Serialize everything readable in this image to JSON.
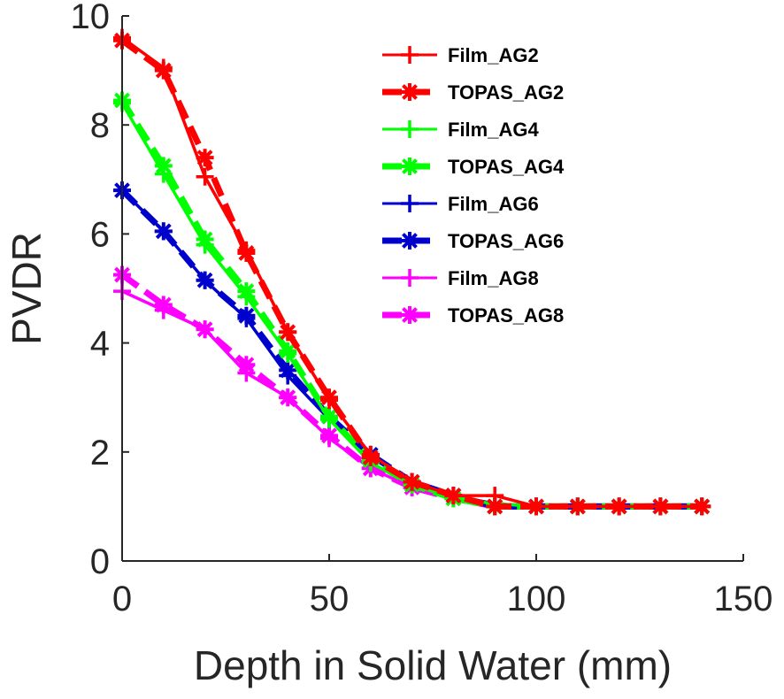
{
  "chart_data": {
    "type": "line",
    "xlabel": "Depth in Solid Water (mm)",
    "ylabel": "PVDR",
    "xlim": [
      0,
      150
    ],
    "ylim": [
      0,
      10
    ],
    "xticks": [
      0,
      50,
      100,
      150
    ],
    "yticks": [
      0,
      2,
      4,
      6,
      8,
      10
    ],
    "grid": false,
    "legend_position": "top-right",
    "x": [
      0,
      10,
      20,
      30,
      40,
      50,
      60,
      70,
      80,
      90,
      100,
      110,
      120,
      130,
      140
    ],
    "series": [
      {
        "name": "Film_AG2",
        "color": "#ff0000",
        "marker": "plus",
        "line": "solid",
        "weight": "thin",
        "values": [
          9.6,
          9.05,
          7.05,
          5.7,
          4.2,
          2.95,
          1.95,
          1.45,
          1.2,
          1.2,
          1.0,
          1.0,
          1.0,
          1.0,
          1.0
        ]
      },
      {
        "name": "TOPAS_AG2",
        "color": "#ff0000",
        "marker": "asterisk",
        "line": "dashed",
        "weight": "thick",
        "values": [
          9.55,
          9.0,
          7.4,
          5.65,
          4.2,
          3.0,
          1.9,
          1.45,
          1.2,
          1.0,
          1.0,
          1.0,
          1.0,
          1.0,
          1.0
        ]
      },
      {
        "name": "Film_AG4",
        "color": "#00ff00",
        "marker": "plus",
        "line": "solid",
        "weight": "thin",
        "values": [
          8.4,
          7.1,
          5.8,
          4.85,
          3.8,
          2.6,
          1.8,
          1.4,
          1.15,
          1.05,
          1.0,
          1.0,
          1.0,
          1.0,
          1.0
        ]
      },
      {
        "name": "TOPAS_AG4",
        "color": "#00ff00",
        "marker": "asterisk",
        "line": "dashed",
        "weight": "thick",
        "values": [
          8.45,
          7.25,
          5.9,
          4.95,
          3.85,
          2.65,
          1.85,
          1.4,
          1.15,
          1.0,
          1.0,
          1.0,
          1.0,
          1.0,
          1.0
        ]
      },
      {
        "name": "Film_AG6",
        "color": "#0000cc",
        "marker": "plus",
        "line": "solid",
        "weight": "thin",
        "values": [
          6.8,
          6.05,
          5.15,
          4.45,
          3.4,
          2.6,
          1.95,
          1.45,
          1.2,
          1.05,
          1.0,
          1.0,
          1.0,
          1.0,
          1.0
        ]
      },
      {
        "name": "TOPAS_AG6",
        "color": "#0000cc",
        "marker": "asterisk",
        "line": "dashed",
        "weight": "thick",
        "values": [
          6.8,
          6.05,
          5.15,
          4.5,
          3.5,
          2.65,
          1.95,
          1.45,
          1.2,
          1.0,
          1.0,
          1.0,
          1.0,
          1.0,
          1.0
        ]
      },
      {
        "name": "Film_AG8",
        "color": "#ff00ff",
        "marker": "plus",
        "line": "solid",
        "weight": "thin",
        "values": [
          4.95,
          4.6,
          4.25,
          3.45,
          3.0,
          2.25,
          1.7,
          1.35,
          1.15,
          1.0,
          1.0,
          1.0,
          1.0,
          1.0,
          1.0
        ]
      },
      {
        "name": "TOPAS_AG8",
        "color": "#ff00ff",
        "marker": "asterisk",
        "line": "dashed",
        "weight": "thick",
        "values": [
          5.25,
          4.7,
          4.25,
          3.6,
          3.0,
          2.3,
          1.7,
          1.35,
          1.15,
          1.0,
          1.0,
          1.0,
          1.0,
          1.0,
          1.0
        ]
      }
    ]
  }
}
